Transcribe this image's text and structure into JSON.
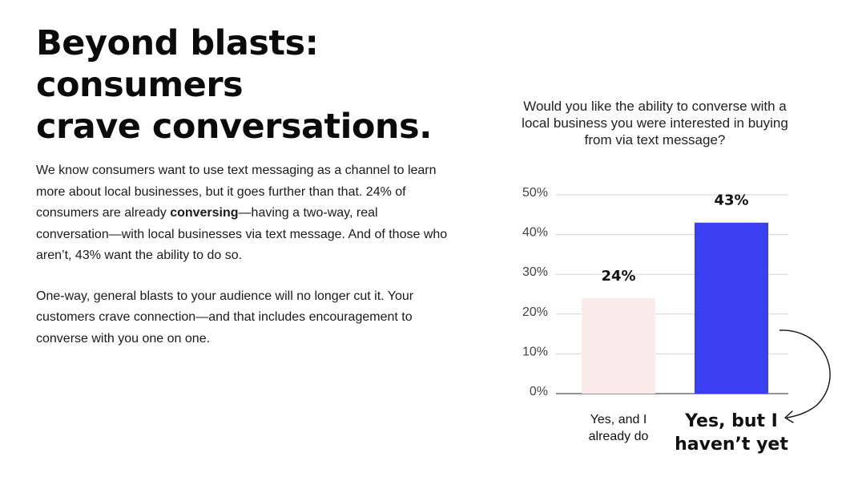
{
  "headline": {
    "line1": "Beyond blasts: consumers",
    "line2": "crave conversations."
  },
  "body": {
    "p1_before": "We know consumers want to use text messaging as a channel to learn more about local businesses, but it goes further than that. 24% of consumers are already ",
    "p1_bold": "conversing",
    "p1_after": "—having a two-way, real conversation—with local businesses via text message. And of those who aren’t, 43% want the ability to do so.",
    "p2": "One-way, general blasts to your audience will no longer cut it. Your customers crave connection—and that includes encouragement to converse with you one on one."
  },
  "chart_data": {
    "type": "bar",
    "title": "Would you like the ability to converse with a local business you were interested in buying from via text message?",
    "categories": [
      {
        "line1": "Yes, and I",
        "line2": "already do"
      },
      {
        "line1": "Yes, but I",
        "line2": "haven’t yet"
      }
    ],
    "values": [
      24,
      43
    ],
    "data_labels": [
      "24%",
      "43%"
    ],
    "ylim": [
      0,
      50
    ],
    "yticks": [
      {
        "value": 0,
        "label": "0%"
      },
      {
        "value": 10,
        "label": "10%"
      },
      {
        "value": 20,
        "label": "20%"
      },
      {
        "value": 30,
        "label": "30%"
      },
      {
        "value": 40,
        "label": "40%"
      },
      {
        "value": 50,
        "label": "50%"
      }
    ],
    "grid": true,
    "bar_colors": [
      "#fbeceb",
      "#3b3ff2"
    ],
    "annotation_arrow": true
  }
}
